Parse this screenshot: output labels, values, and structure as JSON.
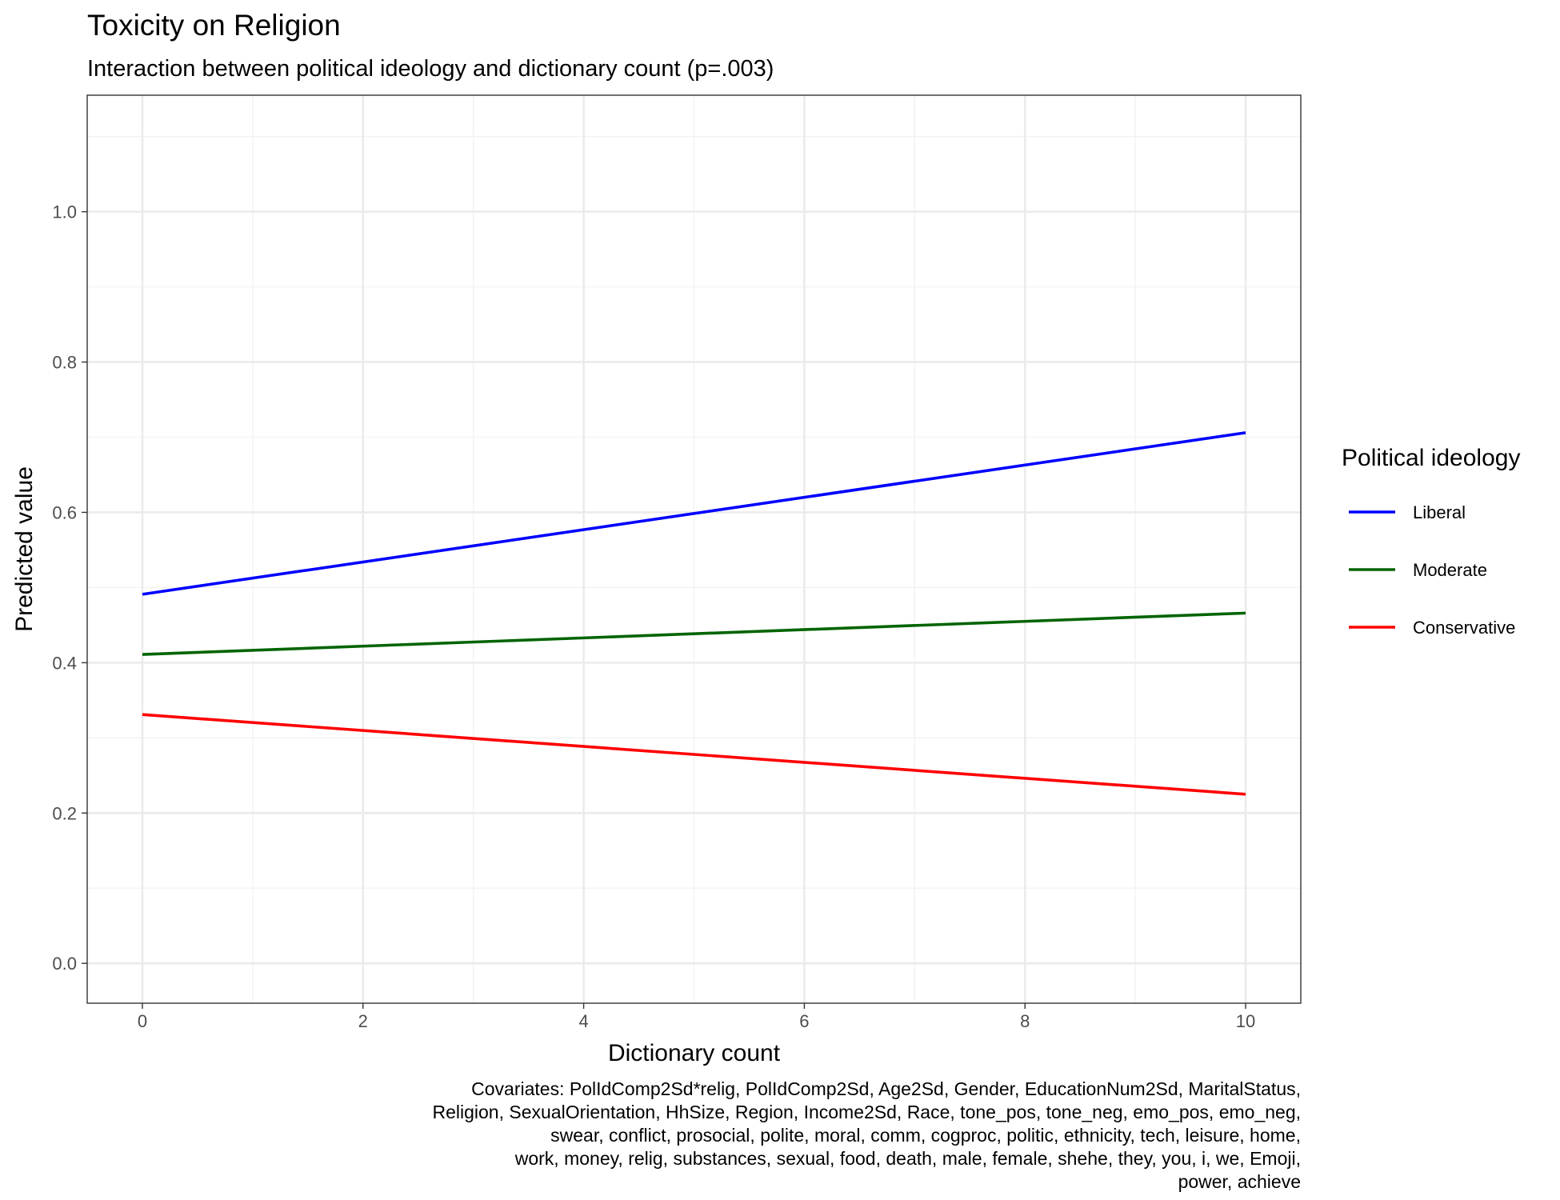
{
  "chart_data": {
    "type": "line",
    "title": "Toxicity on Religion",
    "subtitle": "Interaction between political ideology and dictionary count (p=.003)",
    "xlabel": "Dictionary count",
    "ylabel": "Predicted value",
    "xlim": [
      -0.5,
      10.5
    ],
    "ylim": [
      -0.053,
      1.155
    ],
    "x_ticks": [
      0,
      2,
      4,
      6,
      8,
      10
    ],
    "x_tick_labels": [
      "0",
      "2",
      "4",
      "6",
      "8",
      "10"
    ],
    "y_ticks": [
      0.0,
      0.2,
      0.4,
      0.6,
      0.8,
      1.0
    ],
    "y_tick_labels": [
      "0.0",
      "0.2",
      "0.4",
      "0.6",
      "0.8",
      "1.0"
    ],
    "grid": true,
    "legend": {
      "title": "Political ideology",
      "position": "right"
    },
    "series": [
      {
        "name": "Liberal",
        "color": "#0000ff",
        "x": [
          0,
          10
        ],
        "y": [
          0.491,
          0.706
        ]
      },
      {
        "name": "Moderate",
        "color": "#006400",
        "x": [
          0,
          10
        ],
        "y": [
          0.411,
          0.466
        ]
      },
      {
        "name": "Conservative",
        "color": "#ff0000",
        "x": [
          0,
          10
        ],
        "y": [
          0.331,
          0.225
        ]
      }
    ],
    "caption": [
      "Covariates: PolIdComp2Sd*relig, PolIdComp2Sd, Age2Sd, Gender, EducationNum2Sd, MaritalStatus,",
      "Religion, SexualOrientation, HhSize, Region, Income2Sd, Race, tone_pos, tone_neg, emo_pos, emo_neg,",
      "swear, conflict, prosocial, polite, moral, comm, cogproc, politic, ethnicity, tech, leisure, home,",
      "work, money, relig, substances, sexual, food, death, male, female, shehe, they, you, i, we, Emoji,",
      "power, achieve"
    ]
  }
}
